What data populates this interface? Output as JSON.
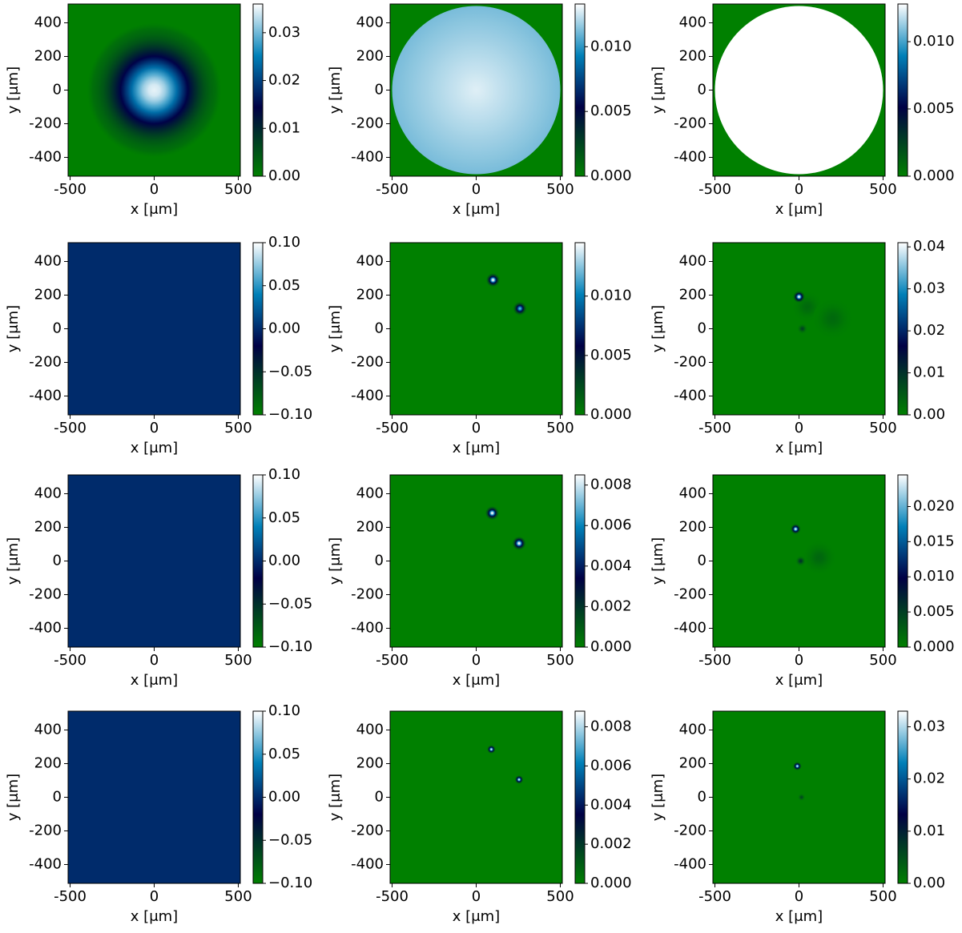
{
  "chart_data": [
    {
      "type": "heatmap",
      "xlabel": "x [μm]",
      "ylabel": "y [μm]",
      "xlim": [
        -512,
        512
      ],
      "ylim": [
        -512,
        512
      ],
      "xticks": [
        -500,
        0,
        500
      ],
      "yticks": [
        -400,
        -200,
        0,
        200,
        400
      ],
      "clim": [
        0,
        0.036
      ],
      "cticks": [
        {
          "value": 0,
          "label": "0.00"
        },
        0.01,
        0.02,
        0.03
      ],
      "background": 0,
      "features": [
        {
          "kind": "gaussian",
          "x": 0,
          "y": 0,
          "r": 400,
          "value": 0.035
        }
      ]
    },
    {
      "type": "heatmap",
      "xlabel": "x [μm]",
      "ylabel": "y [μm]",
      "xlim": [
        -512,
        512
      ],
      "ylim": [
        -512,
        512
      ],
      "xticks": [
        -500,
        0,
        500
      ],
      "yticks": [
        -400,
        -200,
        0,
        200,
        400
      ],
      "clim": [
        0,
        0.0133
      ],
      "cticks": [
        {
          "value": 0,
          "label": "0.000"
        },
        0.005,
        {
          "value": 0.01,
          "label": "0.010"
        }
      ],
      "background": 0,
      "features": [
        {
          "kind": "disc",
          "x": 0,
          "y": 0,
          "r": 500,
          "value": 0.0128,
          "edge_value": 0.0112
        }
      ]
    },
    {
      "type": "heatmap",
      "xlabel": "x [μm]",
      "ylabel": "y [μm]",
      "xlim": [
        -512,
        512
      ],
      "ylim": [
        -512,
        512
      ],
      "xticks": [
        -500,
        0,
        500
      ],
      "yticks": [
        -400,
        -200,
        0,
        200,
        400
      ],
      "clim": [
        0,
        0.0128
      ],
      "cticks": [
        {
          "value": 0,
          "label": "0.000"
        },
        0.005,
        {
          "value": 0.01,
          "label": "0.010"
        }
      ],
      "background": 0,
      "features": [
        {
          "kind": "disc",
          "x": 0,
          "y": 0,
          "r": 500,
          "value": 0.0128,
          "edge_value": 0.0128
        }
      ]
    },
    {
      "type": "heatmap",
      "xlabel": "x [μm]",
      "ylabel": "y [μm]",
      "xlim": [
        -512,
        512
      ],
      "ylim": [
        -512,
        512
      ],
      "xticks": [
        -500,
        0,
        500
      ],
      "yticks": [
        -400,
        -200,
        0,
        200,
        400
      ],
      "clim": [
        -0.1,
        0.1
      ],
      "cticks": [
        {
          "value": -0.1,
          "label": "−0.10"
        },
        {
          "value": -0.05,
          "label": "−0.05"
        },
        {
          "value": 0,
          "label": "0.00"
        },
        0.05,
        {
          "value": 0.1,
          "label": "0.10"
        }
      ],
      "background": 0,
      "features": []
    },
    {
      "type": "heatmap",
      "xlabel": "x [μm]",
      "ylabel": "y [μm]",
      "xlim": [
        -512,
        512
      ],
      "ylim": [
        -512,
        512
      ],
      "xticks": [
        -500,
        0,
        500
      ],
      "yticks": [
        -400,
        -200,
        0,
        200,
        400
      ],
      "clim": [
        0,
        0.0145
      ],
      "cticks": [
        {
          "value": 0,
          "label": "0.000"
        },
        0.005,
        {
          "value": 0.01,
          "label": "0.010"
        }
      ],
      "background": 0,
      "features": [
        {
          "kind": "gaussian",
          "x": 100,
          "y": 290,
          "r": 40,
          "value": 0.0145
        },
        {
          "kind": "gaussian",
          "x": 260,
          "y": 120,
          "r": 40,
          "value": 0.012
        }
      ]
    },
    {
      "type": "heatmap",
      "xlabel": "x [μm]",
      "ylabel": "y [μm]",
      "xlim": [
        -512,
        512
      ],
      "ylim": [
        -512,
        512
      ],
      "xticks": [
        -500,
        0,
        500
      ],
      "yticks": [
        -400,
        -200,
        0,
        200,
        400
      ],
      "clim": [
        0,
        0.041
      ],
      "cticks": [
        {
          "value": 0,
          "label": "0.00"
        },
        0.01,
        0.02,
        0.03,
        0.04
      ],
      "background": 0,
      "features": [
        {
          "kind": "gaussian",
          "x": 50,
          "y": 130,
          "r": 90,
          "value": 0.003
        },
        {
          "kind": "gaussian",
          "x": 200,
          "y": 60,
          "r": 120,
          "value": 0.003
        },
        {
          "kind": "gaussian",
          "x": 0,
          "y": 190,
          "r": 35,
          "value": 0.041
        },
        {
          "kind": "gaussian",
          "x": 20,
          "y": 0,
          "r": 30,
          "value": 0.008
        }
      ]
    },
    {
      "type": "heatmap",
      "xlabel": "x [μm]",
      "ylabel": "y [μm]",
      "xlim": [
        -512,
        512
      ],
      "ylim": [
        -512,
        512
      ],
      "xticks": [
        -500,
        0,
        500
      ],
      "yticks": [
        -400,
        -200,
        0,
        200,
        400
      ],
      "clim": [
        -0.1,
        0.1
      ],
      "cticks": [
        {
          "value": -0.1,
          "label": "−0.10"
        },
        {
          "value": -0.05,
          "label": "−0.05"
        },
        {
          "value": 0,
          "label": "0.00"
        },
        0.05,
        {
          "value": 0.1,
          "label": "0.10"
        }
      ],
      "background": 0,
      "features": []
    },
    {
      "type": "heatmap",
      "xlabel": "x [μm]",
      "ylabel": "y [μm]",
      "xlim": [
        -512,
        512
      ],
      "ylim": [
        -512,
        512
      ],
      "xticks": [
        -500,
        0,
        500
      ],
      "yticks": [
        -400,
        -200,
        0,
        200,
        400
      ],
      "clim": [
        0,
        0.0085
      ],
      "cticks": [
        {
          "value": 0,
          "label": "0.000"
        },
        0.002,
        0.004,
        0.006,
        0.008
      ],
      "background": 0,
      "features": [
        {
          "kind": "gaussian",
          "x": 95,
          "y": 285,
          "r": 40,
          "value": 0.0085
        },
        {
          "kind": "gaussian",
          "x": 255,
          "y": 105,
          "r": 40,
          "value": 0.0085
        }
      ]
    },
    {
      "type": "heatmap",
      "xlabel": "x [μm]",
      "ylabel": "y [μm]",
      "xlim": [
        -512,
        512
      ],
      "ylim": [
        -512,
        512
      ],
      "xticks": [
        -500,
        0,
        500
      ],
      "yticks": [
        -400,
        -200,
        0,
        200,
        400
      ],
      "clim": [
        0,
        0.0245
      ],
      "cticks": [
        {
          "value": 0,
          "label": "0.000"
        },
        0.005,
        {
          "value": 0.01,
          "label": "0.010"
        },
        0.015,
        {
          "value": 0.02,
          "label": "0.020"
        }
      ],
      "background": 0,
      "features": [
        {
          "kind": "gaussian",
          "x": 120,
          "y": 20,
          "r": 100,
          "value": 0.002
        },
        {
          "kind": "gaussian",
          "x": -20,
          "y": 190,
          "r": 30,
          "value": 0.024
        },
        {
          "kind": "gaussian",
          "x": 10,
          "y": 0,
          "r": 30,
          "value": 0.006
        }
      ]
    },
    {
      "type": "heatmap",
      "xlabel": "x [μm]",
      "ylabel": "y [μm]",
      "xlim": [
        -512,
        512
      ],
      "ylim": [
        -512,
        512
      ],
      "xticks": [
        -500,
        0,
        500
      ],
      "yticks": [
        -400,
        -200,
        0,
        200,
        400
      ],
      "clim": [
        -0.1,
        0.1
      ],
      "cticks": [
        {
          "value": -0.1,
          "label": "−0.10"
        },
        {
          "value": -0.05,
          "label": "−0.05"
        },
        {
          "value": 0,
          "label": "0.00"
        },
        0.05,
        {
          "value": 0.1,
          "label": "0.10"
        }
      ],
      "background": 0,
      "features": []
    },
    {
      "type": "heatmap",
      "xlabel": "x [μm]",
      "ylabel": "y [μm]",
      "xlim": [
        -512,
        512
      ],
      "ylim": [
        -512,
        512
      ],
      "xticks": [
        -500,
        0,
        500
      ],
      "yticks": [
        -400,
        -200,
        0,
        200,
        400
      ],
      "clim": [
        0,
        0.0088
      ],
      "cticks": [
        {
          "value": 0,
          "label": "0.000"
        },
        0.002,
        0.004,
        0.006,
        0.008
      ],
      "background": 0,
      "features": [
        {
          "kind": "gaussian",
          "x": 90,
          "y": 285,
          "r": 25,
          "value": 0.0087
        },
        {
          "kind": "gaussian",
          "x": 255,
          "y": 105,
          "r": 25,
          "value": 0.0087
        }
      ]
    },
    {
      "type": "heatmap",
      "xlabel": "x [μm]",
      "ylabel": "y [μm]",
      "xlim": [
        -512,
        512
      ],
      "ylim": [
        -512,
        512
      ],
      "xticks": [
        -500,
        0,
        500
      ],
      "yticks": [
        -400,
        -200,
        0,
        200,
        400
      ],
      "clim": [
        0,
        0.033
      ],
      "cticks": [
        {
          "value": 0,
          "label": "0.00"
        },
        0.01,
        0.02,
        0.03
      ],
      "background": 0,
      "features": [
        {
          "kind": "gaussian",
          "x": -10,
          "y": 185,
          "r": 25,
          "value": 0.032
        },
        {
          "kind": "gaussian",
          "x": 15,
          "y": 0,
          "r": 22,
          "value": 0.006
        }
      ]
    }
  ],
  "colormap": [
    [
      0,
      "#008000"
    ],
    [
      0.4,
      "#000045"
    ],
    [
      0.7,
      "#0080b8"
    ],
    [
      1,
      "#ffffff"
    ]
  ]
}
